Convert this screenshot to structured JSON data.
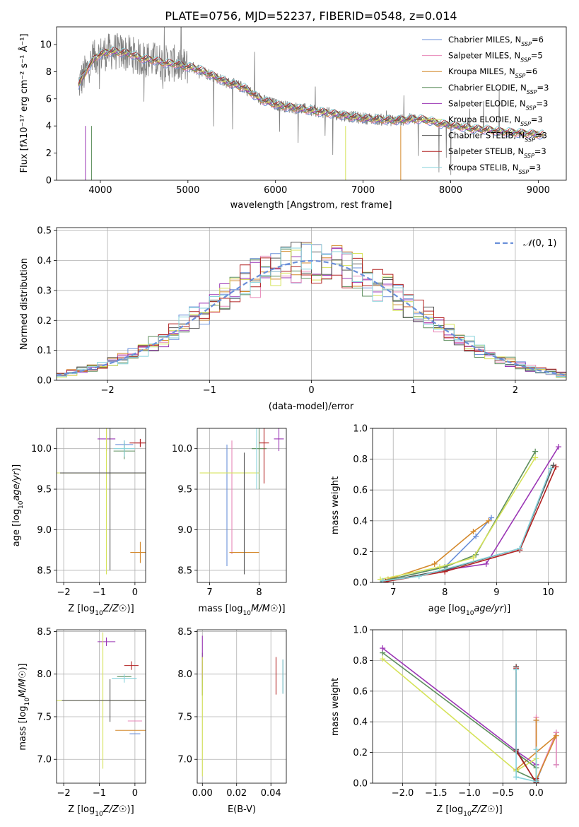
{
  "figure_title": "PLATE=0756, MJD=52237, FIBERID=0548, z=0.014",
  "colors": [
    "#6a8fd9",
    "#e887b8",
    "#d4892c",
    "#5e8f5e",
    "#9b36b5",
    "#d6e35a",
    "#555555",
    "#b22222",
    "#87d3dc"
  ],
  "chart_data": [
    {
      "id": "spectrum",
      "type": "line",
      "xlabel": "wavelength [Angstrom, rest frame]",
      "ylabel": "Flux [fλ10⁻¹⁷ erg cm⁻² s⁻¹ Å⁻¹]",
      "xlim": [
        3500,
        9320
      ],
      "ylim": [
        0,
        11.3
      ],
      "xticks": [
        4000,
        5000,
        6000,
        7000,
        8000,
        9000
      ],
      "yticks": [
        0,
        2,
        4,
        6,
        8,
        10
      ],
      "legend_position": "upper-right",
      "data_color": "#808080",
      "continuum_x": [
        3750,
        3850,
        3950,
        4050,
        4150,
        4250,
        4350,
        4450,
        4550,
        4650,
        4750,
        4850,
        4950,
        5050,
        5150,
        5250,
        5350,
        5450,
        5550,
        5650,
        5750,
        5850,
        5950,
        6050,
        6150,
        6250,
        6350,
        6450,
        6550,
        6650,
        6750,
        6850,
        6950,
        7050,
        7150,
        7250,
        7350,
        7450,
        7550,
        7650,
        7750,
        7850,
        7950,
        8050,
        8150,
        8250,
        8350,
        8450,
        8550,
        8650,
        8750,
        8850,
        8950,
        9050
      ],
      "continuum_y": [
        7.0,
        8.2,
        9.1,
        9.4,
        9.5,
        9.4,
        9.3,
        9.0,
        8.9,
        8.8,
        8.6,
        8.6,
        8.4,
        8.3,
        8.1,
        7.8,
        7.5,
        7.2,
        7.0,
        6.8,
        6.3,
        5.9,
        5.7,
        5.5,
        5.4,
        5.3,
        5.2,
        5.1,
        5.0,
        4.9,
        4.8,
        4.7,
        4.6,
        4.55,
        4.5,
        4.45,
        4.4,
        4.45,
        4.5,
        4.5,
        4.4,
        4.2,
        4.1,
        4.0,
        3.9,
        3.8,
        3.75,
        3.7,
        3.6,
        3.55,
        3.5,
        3.45,
        3.4,
        3.35
      ],
      "series": [
        {
          "name": "Chabrier MILES, N_SSP=6",
          "label_main": "Chabrier MILES, N",
          "label_sub": "SSP",
          "label_tail": "=6"
        },
        {
          "name": "Salpeter MILES, N_SSP=5",
          "label_main": "Salpeter MILES, N",
          "label_sub": "SSP",
          "label_tail": "=5"
        },
        {
          "name": "Kroupa MILES, N_SSP=6",
          "label_main": "Kroupa MILES, N",
          "label_sub": "SSP",
          "label_tail": "=6"
        },
        {
          "name": "Chabrier ELODIE, N_SSP=3",
          "label_main": "Chabrier ELODIE, N",
          "label_sub": "SSP",
          "label_tail": "=3"
        },
        {
          "name": "Salpeter ELODIE, N_SSP=3",
          "label_main": "Salpeter ELODIE, N",
          "label_sub": "SSP",
          "label_tail": "=3"
        },
        {
          "name": "Kroupa ELODIE, N_SSP=3",
          "label_main": "Kroupa ELODIE, N",
          "label_sub": "SSP",
          "label_tail": "=3"
        },
        {
          "name": "Chabrier STELIB, N_SSP=3",
          "label_main": "Chabrier STELIB, N",
          "label_sub": "SSP",
          "label_tail": "=3"
        },
        {
          "name": "Salpeter STELIB, N_SSP=3",
          "label_main": "Salpeter STELIB, N",
          "label_sub": "SSP",
          "label_tail": "=3"
        },
        {
          "name": "Kroupa STELIB, N_SSP=3",
          "label_main": "Kroupa STELIB, N",
          "label_sub": "SSP",
          "label_tail": "=3"
        }
      ]
    },
    {
      "id": "residuals",
      "type": "line",
      "xlabel": "(data-model)/error",
      "ylabel": "Normed distribution",
      "xlim": [
        -2.5,
        2.5
      ],
      "ylim": [
        0,
        0.51
      ],
      "xticks": [
        -2,
        -1,
        0,
        1,
        2
      ],
      "yticks": [
        0.0,
        0.1,
        0.2,
        0.3,
        0.4,
        0.5
      ],
      "grid": true,
      "legend_position": "upper-right",
      "legend_entry": "N(0,1)",
      "gaussian_color": "#6a8fd9",
      "bin_width": 0.1
    },
    {
      "id": "z-age",
      "type": "scatter",
      "xlabel": "Z [log10(Z/Z☉)]",
      "ylabel": "age  [log10(age/yr)]",
      "xlim": [
        -2.2,
        0.3
      ],
      "ylim": [
        8.35,
        10.25
      ],
      "xticks": [
        -2,
        -1,
        0
      ],
      "yticks": [
        8.5,
        9.0,
        9.5,
        10.0
      ],
      "grid": true,
      "points": [
        {
          "x": -0.3,
          "y": 10.05,
          "xerr": 0.25,
          "yerr": 0.05
        },
        {
          "x": 0.15,
          "y": 10.07,
          "xerr": 0.12,
          "yerr": 0.05
        },
        {
          "x": 0.15,
          "y": 8.72,
          "xerr": 0.28,
          "yerr": 0.13
        },
        {
          "x": -0.3,
          "y": 9.97,
          "xerr": 0.3,
          "yerr": 0.1
        },
        {
          "x": -0.8,
          "y": 10.12,
          "xerr": 0.25,
          "yerr": 0.15
        },
        {
          "x": -0.8,
          "y": 9.7,
          "xerr": 1.45,
          "yerr": 1.25
        },
        {
          "x": -0.7,
          "y": 9.7,
          "xerr": 1.4,
          "yerr": 1.2
        },
        {
          "x": 0.15,
          "y": 10.07,
          "xerr": 0.3,
          "yerr": 0.05
        },
        {
          "x": -0.3,
          "y": 10.0,
          "xerr": 0.3,
          "yerr": 0.1
        }
      ]
    },
    {
      "id": "mass-age",
      "type": "scatter",
      "xlabel": "mass [log10(M/M☉)]",
      "ylabel": "",
      "xlim": [
        6.75,
        8.55
      ],
      "ylim": [
        8.35,
        10.25
      ],
      "xticks": [
        7,
        8
      ],
      "yticks": [
        8.5,
        9.0,
        9.5,
        10.0
      ],
      "grid": true,
      "points": [
        {
          "x": 7.35,
          "y": 9.3,
          "xerr": 0.0,
          "yerr": 0.75
        },
        {
          "x": 7.45,
          "y": 9.4,
          "xerr": 0.0,
          "yerr": 0.7
        },
        {
          "x": 7.7,
          "y": 8.72,
          "xerr": 0.3,
          "yerr": 0.0
        },
        {
          "x": 8.0,
          "y": 10.0,
          "xerr": 0.15,
          "yerr": 0.5
        },
        {
          "x": 8.4,
          "y": 10.12,
          "xerr": 0.1,
          "yerr": 0.15
        },
        {
          "x": 7.4,
          "y": 9.7,
          "xerr": 0.6,
          "yerr": 0.0
        },
        {
          "x": 7.7,
          "y": 9.2,
          "xerr": 0.0,
          "yerr": 0.75
        },
        {
          "x": 8.1,
          "y": 10.07,
          "xerr": 0.1,
          "yerr": 0.5
        },
        {
          "x": 7.95,
          "y": 10.0,
          "xerr": 0.0,
          "yerr": 0.5
        }
      ]
    },
    {
      "id": "mass-weight-age",
      "type": "line",
      "xlabel": "age  [log10(age/yr)]",
      "ylabel": "mass weight",
      "xlim": [
        6.6,
        10.35
      ],
      "ylim": [
        0,
        1.0
      ],
      "xticks": [
        7,
        8,
        9,
        10
      ],
      "yticks": [
        0.0,
        0.2,
        0.4,
        0.6,
        0.8,
        1.0
      ],
      "grid": true,
      "series": [
        {
          "x": [
            6.8,
            8.0,
            8.6,
            8.9
          ],
          "y": [
            0.01,
            0.1,
            0.3,
            0.42
          ]
        },
        {
          "x": 6.85,
          "unused": true
        },
        {
          "x": [
            6.9,
            7.8,
            8.55,
            8.85
          ],
          "y": [
            0.02,
            0.12,
            0.33,
            0.4
          ]
        },
        {
          "x": [
            6.8,
            8.0,
            8.6,
            9.75
          ],
          "y": [
            0.01,
            0.1,
            0.18,
            0.85
          ]
        },
        {
          "x": [
            6.85,
            8.0,
            8.8,
            10.2
          ],
          "y": [
            0.005,
            0.08,
            0.12,
            0.88
          ]
        },
        {
          "x": [
            6.75,
            7.9,
            8.55,
            9.75
          ],
          "y": [
            0.02,
            0.1,
            0.16,
            0.81
          ]
        },
        {
          "x": [
            6.8,
            8.0,
            9.45,
            10.1
          ],
          "y": [
            0.005,
            0.08,
            0.22,
            0.76
          ]
        },
        {
          "x": [
            6.85,
            8.0,
            9.45,
            10.15
          ],
          "y": [
            0.005,
            0.07,
            0.21,
            0.75
          ]
        },
        {
          "x": [
            6.8,
            7.5,
            9.45,
            10.05
          ],
          "y": [
            0.01,
            0.04,
            0.22,
            0.74
          ]
        }
      ]
    },
    {
      "id": "z-mass",
      "type": "scatter",
      "xlabel": "Z [log10(Z/Z☉)]",
      "ylabel": "mass [log10(M/M☉)]",
      "xlim": [
        -2.2,
        0.3
      ],
      "ylim": [
        6.72,
        8.52
      ],
      "xticks": [
        -2,
        -1,
        0
      ],
      "yticks": [
        7.0,
        7.5,
        8.0,
        8.5
      ],
      "grid": true,
      "points": [
        {
          "x": 0.0,
          "y": 7.3,
          "xerr": 0.15,
          "yerr": 0.0
        },
        {
          "x": 0.0,
          "y": 7.45,
          "xerr": 0.2,
          "yerr": 0.0
        },
        {
          "x": -0.1,
          "y": 7.34,
          "xerr": 0.45,
          "yerr": 0.0
        },
        {
          "x": -0.3,
          "y": 7.97,
          "xerr": 0.2,
          "yerr": 0.0
        },
        {
          "x": -0.8,
          "y": 8.38,
          "xerr": 0.25,
          "yerr": 0.05
        },
        {
          "x": -0.9,
          "y": 7.69,
          "xerr": 1.3,
          "yerr": 0.8
        },
        {
          "x": -0.7,
          "y": 7.69,
          "xerr": 1.35,
          "yerr": 0.25
        },
        {
          "x": -0.1,
          "y": 8.1,
          "xerr": 0.2,
          "yerr": 0.05
        },
        {
          "x": -0.3,
          "y": 7.95,
          "xerr": 0.35,
          "yerr": 0.05
        }
      ]
    },
    {
      "id": "ebv-mass",
      "type": "scatter",
      "xlabel": "E(B-V)",
      "ylabel": "",
      "xlim": [
        -0.003,
        0.049
      ],
      "ylim": [
        6.72,
        8.52
      ],
      "xticks": [
        0.0,
        0.02,
        0.04
      ],
      "yticks": [
        7.0,
        7.5,
        8.0,
        8.5
      ],
      "grid": true,
      "points": [
        {
          "x": 0.0,
          "y": 8.0,
          "xerr": 0.0,
          "yerr": 0.15
        },
        {
          "x": 0.0,
          "y": 8.05,
          "xerr": 0.0,
          "yerr": 0.1
        },
        {
          "x": 0.0,
          "y": 7.95,
          "xerr": 0.0,
          "yerr": 0.2
        },
        {
          "x": 0.0,
          "y": 8.0,
          "xerr": 0.0,
          "yerr": 0.25
        },
        {
          "x": 0.0,
          "y": 8.2,
          "xerr": 0.0,
          "yerr": 0.25
        },
        {
          "x": 0.0,
          "y": 7.5,
          "xerr": 0.0,
          "yerr": 0.7
        },
        {
          "x": 0.047,
          "y": 7.97,
          "xerr": 0.0,
          "yerr": 0.2
        },
        {
          "x": 0.043,
          "y": 7.98,
          "xerr": 0.0,
          "yerr": 0.22
        },
        {
          "x": 0.047,
          "y": 7.97,
          "xerr": 0.0,
          "yerr": 0.2
        }
      ]
    },
    {
      "id": "mass-weight-z",
      "type": "line",
      "xlabel": "Z [log10(Z/Z☉)]",
      "ylabel": "mass weight",
      "xlim": [
        -2.45,
        0.45
      ],
      "ylim": [
        0,
        1.0
      ],
      "xticks": [
        -2.0,
        -1.5,
        -1.0,
        -0.5,
        0.0
      ],
      "yticks": [
        0.0,
        0.2,
        0.4,
        0.6,
        0.8,
        1.0
      ],
      "grid": true,
      "series": [
        {
          "x": [
            0.0,
            0.0,
            0.3,
            0.3
          ],
          "y": [
            0.41,
            0.01,
            0.33,
            0.12
          ]
        },
        {
          "x": [
            0.0,
            0.0,
            0.3,
            0.3
          ],
          "y": [
            0.43,
            0.02,
            0.33,
            0.12
          ]
        },
        {
          "x": [
            0.0,
            0.0,
            0.3,
            -0.3
          ],
          "y": [
            0.41,
            0.02,
            0.31,
            0.09
          ]
        },
        {
          "x": [
            -2.3,
            0.0,
            0.0,
            -0.3
          ],
          "y": [
            0.85,
            0.1,
            0.02,
            0.08
          ]
        },
        {
          "x": [
            -2.3,
            -0.3,
            0.0
          ],
          "y": [
            0.88,
            0.21,
            0.12
          ]
        },
        {
          "x": [
            -2.3,
            -0.3,
            0.0,
            0.0
          ],
          "y": [
            0.81,
            0.08,
            0.16,
            0.02
          ]
        },
        {
          "x": [
            -0.3,
            -0.3,
            0.0,
            0.0
          ],
          "y": [
            0.76,
            0.22,
            0.0,
            0.02
          ]
        },
        {
          "x": [
            -0.3,
            -0.3,
            0.0,
            0.0
          ],
          "y": [
            0.75,
            0.21,
            0.005,
            0.03
          ]
        },
        {
          "x": [
            -0.3,
            -0.3,
            0.0,
            0.0
          ],
          "y": [
            0.74,
            0.04,
            0.01,
            0.22
          ]
        }
      ]
    }
  ]
}
